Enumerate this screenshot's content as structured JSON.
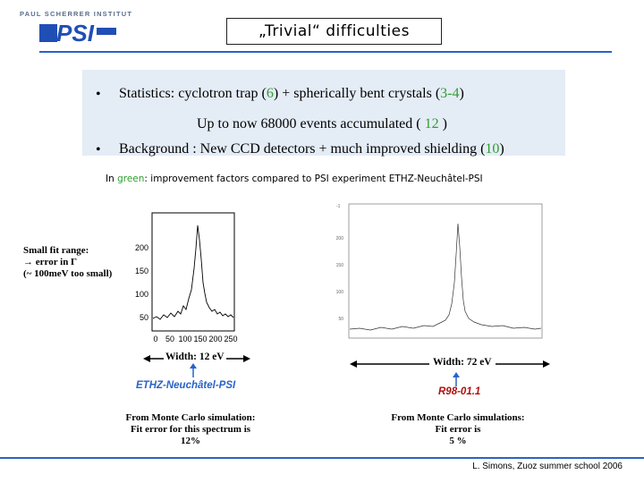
{
  "header": {
    "institute": "PAUL SCHERRER INSTITUT",
    "logo_text": "PSI",
    "title": "„Trivial“ difficulties",
    "accent_color": "#2a63c8",
    "logo_color": "#1f4fb5"
  },
  "panel": {
    "bullet1_prefix": "Statistics: cyclotron trap (",
    "bullet1_g1": "6",
    "bullet1_mid": ") + spherically bent crystals (",
    "bullet1_g2": "3-4",
    "bullet1_suffix": ")",
    "line2_prefix": "Up to now 68000 events accumulated ( ",
    "line2_g": "12",
    "line2_suffix": " )",
    "bullet2_prefix": "Background : New CCD detectors + much improved shielding (",
    "bullet2_g": "10",
    "bullet2_suffix": ")",
    "highlight_color": "#2f9c2f"
  },
  "note": {
    "prefix": "In ",
    "green_word": "green",
    "suffix": ": improvement factors compared to PSI experiment ETHZ-Neuchâtel-PSI"
  },
  "left_plot": {
    "y_ticks": [
      "200",
      "150",
      "100",
      "50"
    ],
    "x_ticks": [
      "0",
      "50",
      "100",
      "150",
      "200",
      "250"
    ],
    "annotation": [
      "Small fit range:",
      "→ error in Γ",
      "(~ 100meV too small)"
    ],
    "width_label": "Width: 12 eV",
    "experiment": "ETHZ-Neuchâtel-PSI",
    "mc_text": [
      "From Monte Carlo simulation:",
      "Fit error for this spectrum is",
      "12%"
    ]
  },
  "right_plot": {
    "width_label": "Width: 72 eV",
    "experiment": "R98-01.1",
    "experiment_color": "#b01010",
    "mc_text": [
      "From Monte Carlo simulations:",
      "Fit error is",
      "5 %"
    ]
  },
  "footer": {
    "text": "L. Simons, Zuoz summer school 2006"
  }
}
